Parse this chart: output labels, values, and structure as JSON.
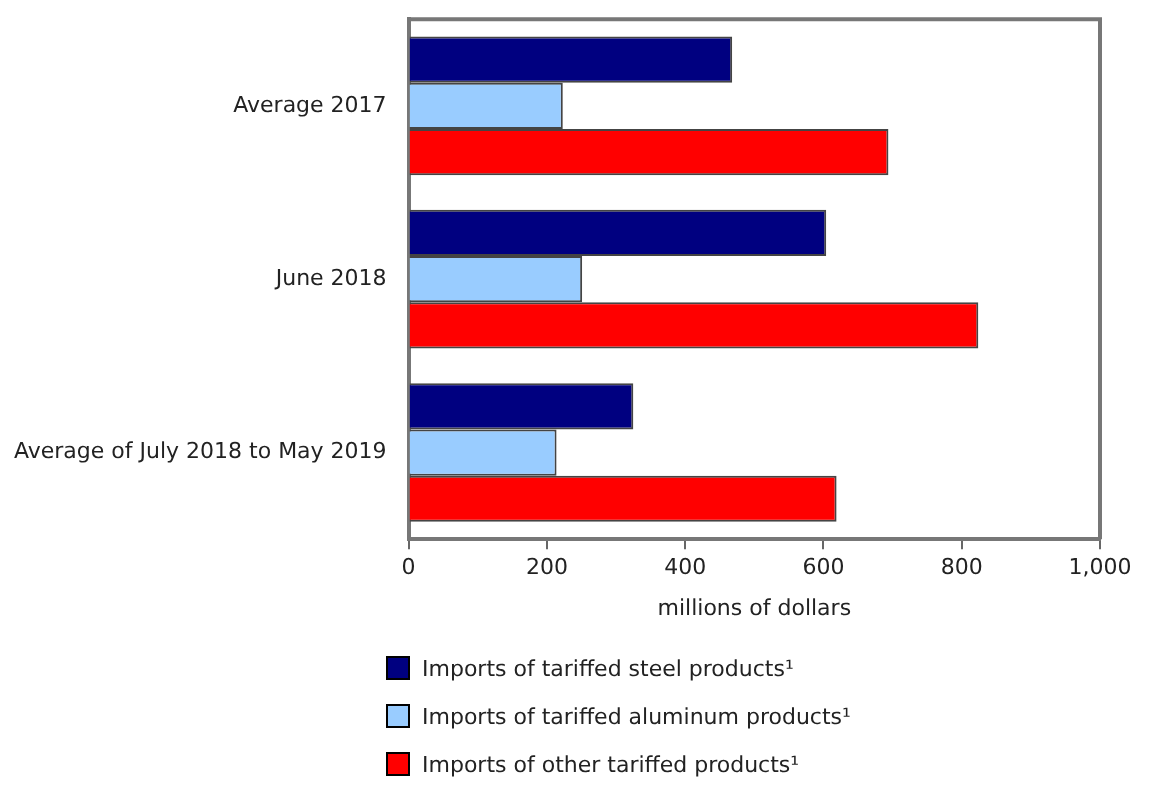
{
  "chart_data": {
    "type": "bar",
    "orientation": "horizontal",
    "xlabel": "millions of dollars",
    "categories": [
      "Average 2017",
      "June 2018",
      "Average of July 2018 to May 2019"
    ],
    "series": [
      {
        "name": "Imports of tariffed steel products¹",
        "color": "#000080",
        "values": [
          468,
          604,
          325
        ]
      },
      {
        "name": "Imports of tariffed aluminum products¹",
        "color": "#99ccff",
        "values": [
          223,
          251,
          214
        ]
      },
      {
        "name": "Imports of other tariffed products¹",
        "color": "#ff0000",
        "values": [
          694,
          824,
          619
        ]
      }
    ],
    "xlim": [
      0,
      1000
    ],
    "xticks": [
      0,
      200,
      400,
      600,
      800,
      {
        "value": 1000,
        "label": "1,000"
      }
    ],
    "grid": false,
    "legend": "bottom"
  }
}
